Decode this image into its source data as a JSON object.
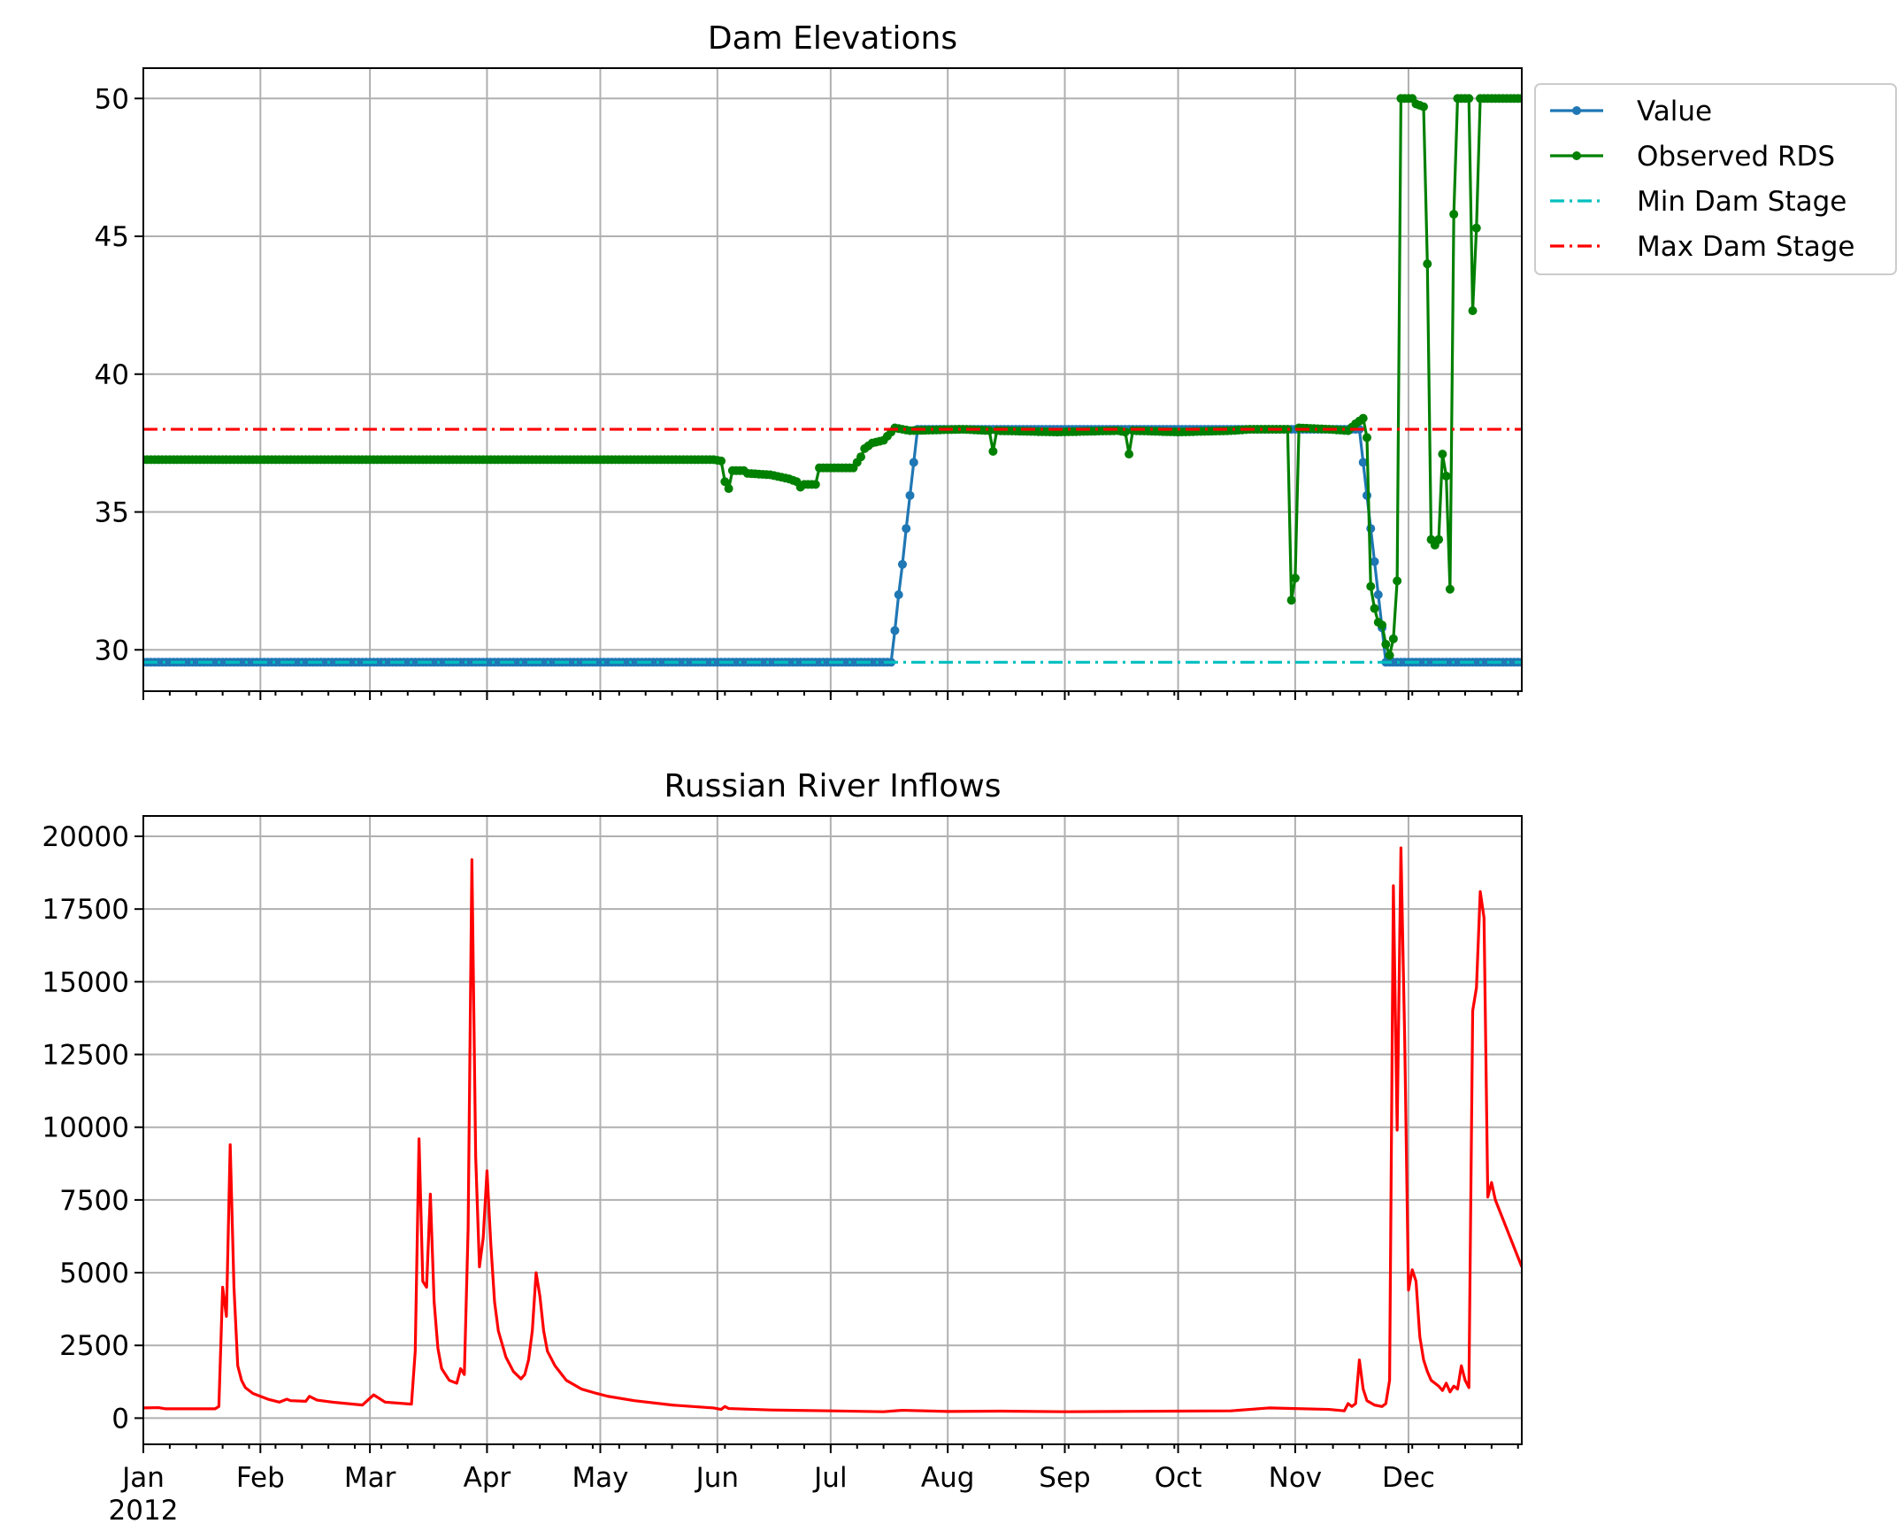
{
  "chart_data": [
    {
      "type": "line",
      "title": "Dam Elevations",
      "xlabel": "",
      "ylabel": "",
      "ylim": [
        28.5,
        51.1
      ],
      "yticks": [
        30,
        35,
        40,
        45,
        50
      ],
      "grid": true,
      "legend_position": "outside-upper-right",
      "series": [
        {
          "name": "Value",
          "color": "#1f77b4",
          "style": "solid",
          "marker": "dot",
          "points": [
            [
              "2012-01-01",
              29.55
            ],
            [
              "2012-07-17",
              29.55
            ],
            [
              "2012-07-18",
              30.7
            ],
            [
              "2012-07-19",
              32.0
            ],
            [
              "2012-07-20",
              33.1
            ],
            [
              "2012-07-21",
              34.4
            ],
            [
              "2012-07-22",
              35.6
            ],
            [
              "2012-07-23",
              36.8
            ],
            [
              "2012-07-24",
              38.0
            ],
            [
              "2012-11-17",
              38.0
            ],
            [
              "2012-11-18",
              38.0
            ],
            [
              "2012-11-19",
              36.8
            ],
            [
              "2012-11-20",
              35.6
            ],
            [
              "2012-11-21",
              34.4
            ],
            [
              "2012-11-22",
              33.2
            ],
            [
              "2012-11-23",
              32.0
            ],
            [
              "2012-11-24",
              30.8
            ],
            [
              "2012-11-25",
              29.55
            ],
            [
              "2012-12-31",
              29.55
            ]
          ]
        },
        {
          "name": "Observed RDS",
          "color": "#008000",
          "style": "solid",
          "marker": "dot",
          "points": [
            [
              "2012-01-01",
              36.9
            ],
            [
              "2012-05-31",
              36.9
            ],
            [
              "2012-06-02",
              36.85
            ],
            [
              "2012-06-03",
              36.1
            ],
            [
              "2012-06-04",
              35.85
            ],
            [
              "2012-06-05",
              36.5
            ],
            [
              "2012-06-08",
              36.5
            ],
            [
              "2012-06-09",
              36.4
            ],
            [
              "2012-06-15",
              36.35
            ],
            [
              "2012-06-20",
              36.2
            ],
            [
              "2012-06-22",
              36.1
            ],
            [
              "2012-06-23",
              35.9
            ],
            [
              "2012-06-24",
              36.0
            ],
            [
              "2012-06-27",
              36.0
            ],
            [
              "2012-06-28",
              36.6
            ],
            [
              "2012-07-07",
              36.6
            ],
            [
              "2012-07-09",
              37.0
            ],
            [
              "2012-07-10",
              37.3
            ],
            [
              "2012-07-12",
              37.5
            ],
            [
              "2012-07-15",
              37.6
            ],
            [
              "2012-07-17",
              37.9
            ],
            [
              "2012-07-18",
              38.05
            ],
            [
              "2012-07-22",
              37.95
            ],
            [
              "2012-08-05",
              38.0
            ],
            [
              "2012-08-12",
              37.95
            ],
            [
              "2012-08-13",
              37.2
            ],
            [
              "2012-08-14",
              37.95
            ],
            [
              "2012-08-30",
              37.9
            ],
            [
              "2012-09-15",
              37.95
            ],
            [
              "2012-09-17",
              37.9
            ],
            [
              "2012-09-18",
              37.1
            ],
            [
              "2012-09-19",
              37.95
            ],
            [
              "2012-10-01",
              37.9
            ],
            [
              "2012-10-15",
              37.95
            ],
            [
              "2012-10-20",
              38.0
            ],
            [
              "2012-10-30",
              38.0
            ],
            [
              "2012-10-31",
              31.8
            ],
            [
              "2012-11-01",
              32.6
            ],
            [
              "2012-11-02",
              38.05
            ],
            [
              "2012-11-10",
              38.0
            ],
            [
              "2012-11-15",
              37.95
            ],
            [
              "2012-11-17",
              38.2
            ],
            [
              "2012-11-18",
              38.3
            ],
            [
              "2012-11-19",
              38.4
            ],
            [
              "2012-11-20",
              37.7
            ],
            [
              "2012-11-21",
              32.3
            ],
            [
              "2012-11-22",
              31.5
            ],
            [
              "2012-11-23",
              31.0
            ],
            [
              "2012-11-24",
              30.9
            ],
            [
              "2012-11-25",
              30.2
            ],
            [
              "2012-11-26",
              29.8
            ],
            [
              "2012-11-27",
              30.4
            ],
            [
              "2012-11-28",
              32.5
            ],
            [
              "2012-11-29",
              50.0
            ],
            [
              "2012-12-02",
              50.0
            ],
            [
              "2012-12-03",
              49.8
            ],
            [
              "2012-12-05",
              49.7
            ],
            [
              "2012-12-06",
              44.0
            ],
            [
              "2012-12-07",
              34.0
            ],
            [
              "2012-12-08",
              33.8
            ],
            [
              "2012-12-09",
              34.0
            ],
            [
              "2012-12-10",
              37.1
            ],
            [
              "2012-12-11",
              36.3
            ],
            [
              "2012-12-12",
              32.2
            ],
            [
              "2012-12-13",
              45.8
            ],
            [
              "2012-12-14",
              50.0
            ],
            [
              "2012-12-17",
              50.0
            ],
            [
              "2012-12-18",
              42.3
            ],
            [
              "2012-12-19",
              45.3
            ],
            [
              "2012-12-20",
              50.0
            ],
            [
              "2012-12-31",
              50.0
            ]
          ]
        },
        {
          "name": "Min Dam Stage",
          "color": "#00bfbf",
          "style": "dashdot",
          "marker": "none",
          "points": [
            [
              "2012-01-01",
              29.55
            ],
            [
              "2012-12-31",
              29.55
            ]
          ]
        },
        {
          "name": "Max Dam Stage",
          "color": "#ff0000",
          "style": "dashdot",
          "marker": "none",
          "points": [
            [
              "2012-01-01",
              38.0
            ],
            [
              "2012-12-31",
              38.0
            ]
          ]
        }
      ]
    },
    {
      "type": "line",
      "title": "Russian River Inflows",
      "xlabel": "",
      "ylabel": "",
      "ylim": [
        -900,
        20700
      ],
      "yticks": [
        0,
        2500,
        5000,
        7500,
        10000,
        12500,
        15000,
        17500,
        20000
      ],
      "grid": true,
      "series": [
        {
          "name": "",
          "color": "#ff0000",
          "style": "solid",
          "marker": "none",
          "points": [
            [
              "2012-01-01",
              350
            ],
            [
              "2012-01-05",
              360
            ],
            [
              "2012-01-07",
              320
            ],
            [
              "2012-01-20",
              320
            ],
            [
              "2012-01-21",
              400
            ],
            [
              "2012-01-22",
              4500
            ],
            [
              "2012-01-23",
              3500
            ],
            [
              "2012-01-24",
              9400
            ],
            [
              "2012-01-25",
              4500
            ],
            [
              "2012-01-26",
              1800
            ],
            [
              "2012-01-27",
              1300
            ],
            [
              "2012-01-28",
              1050
            ],
            [
              "2012-01-30",
              850
            ],
            [
              "2012-02-03",
              650
            ],
            [
              "2012-02-06",
              550
            ],
            [
              "2012-02-08",
              650
            ],
            [
              "2012-02-09",
              600
            ],
            [
              "2012-02-13",
              580
            ],
            [
              "2012-02-14",
              750
            ],
            [
              "2012-02-16",
              620
            ],
            [
              "2012-02-20",
              550
            ],
            [
              "2012-02-28",
              450
            ],
            [
              "2012-03-02",
              800
            ],
            [
              "2012-03-05",
              550
            ],
            [
              "2012-03-12",
              480
            ],
            [
              "2012-03-13",
              2300
            ],
            [
              "2012-03-14",
              9600
            ],
            [
              "2012-03-15",
              4700
            ],
            [
              "2012-03-16",
              4500
            ],
            [
              "2012-03-17",
              7700
            ],
            [
              "2012-03-18",
              4000
            ],
            [
              "2012-03-19",
              2400
            ],
            [
              "2012-03-20",
              1700
            ],
            [
              "2012-03-22",
              1300
            ],
            [
              "2012-03-24",
              1200
            ],
            [
              "2012-03-25",
              1700
            ],
            [
              "2012-03-26",
              1500
            ],
            [
              "2012-03-27",
              6500
            ],
            [
              "2012-03-28",
              19200
            ],
            [
              "2012-03-29",
              9000
            ],
            [
              "2012-03-30",
              5200
            ],
            [
              "2012-03-31",
              6200
            ],
            [
              "2012-04-01",
              8500
            ],
            [
              "2012-04-02",
              6000
            ],
            [
              "2012-04-03",
              4000
            ],
            [
              "2012-04-04",
              3000
            ],
            [
              "2012-04-06",
              2100
            ],
            [
              "2012-04-08",
              1600
            ],
            [
              "2012-04-10",
              1350
            ],
            [
              "2012-04-11",
              1500
            ],
            [
              "2012-04-12",
              2000
            ],
            [
              "2012-04-13",
              3000
            ],
            [
              "2012-04-14",
              5000
            ],
            [
              "2012-04-15",
              4200
            ],
            [
              "2012-04-16",
              3000
            ],
            [
              "2012-04-17",
              2300
            ],
            [
              "2012-04-19",
              1800
            ],
            [
              "2012-04-22",
              1300
            ],
            [
              "2012-04-26",
              1000
            ],
            [
              "2012-04-30",
              850
            ],
            [
              "2012-05-03",
              750
            ],
            [
              "2012-05-10",
              600
            ],
            [
              "2012-05-20",
              450
            ],
            [
              "2012-05-31",
              350
            ],
            [
              "2012-06-02",
              300
            ],
            [
              "2012-06-03",
              400
            ],
            [
              "2012-06-04",
              330
            ],
            [
              "2012-06-15",
              280
            ],
            [
              "2012-07-01",
              250
            ],
            [
              "2012-07-15",
              220
            ],
            [
              "2012-07-20",
              270
            ],
            [
              "2012-08-01",
              230
            ],
            [
              "2012-08-15",
              240
            ],
            [
              "2012-09-01",
              220
            ],
            [
              "2012-09-15",
              230
            ],
            [
              "2012-10-01",
              240
            ],
            [
              "2012-10-15",
              250
            ],
            [
              "2012-10-25",
              350
            ],
            [
              "2012-11-10",
              300
            ],
            [
              "2012-11-14",
              250
            ],
            [
              "2012-11-15",
              500
            ],
            [
              "2012-11-16",
              400
            ],
            [
              "2012-11-17",
              500
            ],
            [
              "2012-11-18",
              2000
            ],
            [
              "2012-11-19",
              1000
            ],
            [
              "2012-11-20",
              600
            ],
            [
              "2012-11-22",
              450
            ],
            [
              "2012-11-24",
              400
            ],
            [
              "2012-11-25",
              500
            ],
            [
              "2012-11-26",
              1300
            ],
            [
              "2012-11-27",
              18300
            ],
            [
              "2012-11-28",
              9900
            ],
            [
              "2012-11-29",
              19600
            ],
            [
              "2012-11-30",
              13000
            ],
            [
              "2012-12-01",
              4400
            ],
            [
              "2012-12-02",
              5100
            ],
            [
              "2012-12-03",
              4700
            ],
            [
              "2012-12-04",
              2800
            ],
            [
              "2012-12-05",
              2000
            ],
            [
              "2012-12-06",
              1600
            ],
            [
              "2012-12-07",
              1300
            ],
            [
              "2012-12-09",
              1100
            ],
            [
              "2012-12-10",
              950
            ],
            [
              "2012-12-11",
              1200
            ],
            [
              "2012-12-12",
              900
            ],
            [
              "2012-12-13",
              1100
            ],
            [
              "2012-12-14",
              1000
            ],
            [
              "2012-12-15",
              1800
            ],
            [
              "2012-12-16",
              1300
            ],
            [
              "2012-12-17",
              1050
            ],
            [
              "2012-12-18",
              14000
            ],
            [
              "2012-12-19",
              14800
            ],
            [
              "2012-12-20",
              18100
            ],
            [
              "2012-12-21",
              17200
            ],
            [
              "2012-12-22",
              7600
            ],
            [
              "2012-12-23",
              8100
            ],
            [
              "2012-12-24",
              7500
            ],
            [
              "2012-12-31",
              5200
            ]
          ]
        }
      ]
    }
  ],
  "x_axis": {
    "range": [
      "2012-01-01",
      "2012-12-31"
    ],
    "major_ticks": [
      {
        "date": "2012-01-01",
        "label": "Jan"
      },
      {
        "date": "2012-02-01",
        "label": "Feb"
      },
      {
        "date": "2012-03-01",
        "label": "Mar"
      },
      {
        "date": "2012-04-01",
        "label": "Apr"
      },
      {
        "date": "2012-05-01",
        "label": "May"
      },
      {
        "date": "2012-06-01",
        "label": "Jun"
      },
      {
        "date": "2012-07-01",
        "label": "Jul"
      },
      {
        "date": "2012-08-01",
        "label": "Aug"
      },
      {
        "date": "2012-09-01",
        "label": "Sep"
      },
      {
        "date": "2012-10-01",
        "label": "Oct"
      },
      {
        "date": "2012-11-01",
        "label": "Nov"
      },
      {
        "date": "2012-12-01",
        "label": "Dec"
      }
    ],
    "year_label": "2012"
  }
}
